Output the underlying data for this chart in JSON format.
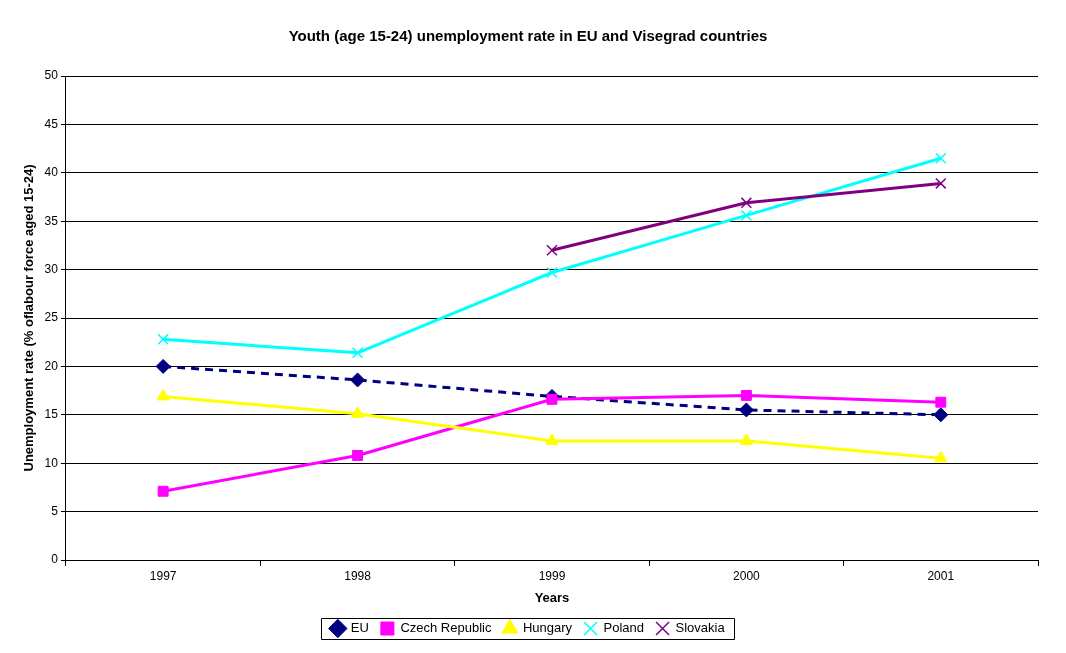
{
  "chart_data": {
    "type": "line",
    "title": "Youth (age 15-24) unemployment rate in EU and Visegrad countries",
    "xlabel": "Years",
    "ylabel": "Unemployment rate (% oflabour force aged 15-24)",
    "categories": [
      "1997",
      "1998",
      "1999",
      "2000",
      "2001"
    ],
    "series": [
      {
        "name": "EU",
        "color": "#000080",
        "marker": "diamond",
        "line_style": "dashed",
        "values": [
          20.0,
          18.6,
          16.9,
          15.5,
          15.0
        ]
      },
      {
        "name": "Czech Republic",
        "color": "#ff00ff",
        "marker": "square",
        "line_style": "solid",
        "values": [
          7.1,
          10.8,
          16.6,
          17.0,
          16.3
        ]
      },
      {
        "name": "Hungary",
        "color": "#ffff00",
        "marker": "triangle",
        "line_style": "solid",
        "values": [
          16.9,
          15.1,
          12.3,
          12.3,
          10.5
        ]
      },
      {
        "name": "Poland",
        "color": "#00ffff",
        "marker": "cross",
        "line_style": "solid",
        "values": [
          22.8,
          21.4,
          29.7,
          35.6,
          41.5
        ]
      },
      {
        "name": "Slovakia",
        "color": "#800080",
        "marker": "cross",
        "line_style": "solid",
        "values": [
          null,
          null,
          32.0,
          36.9,
          38.9
        ]
      }
    ],
    "ylim": [
      0,
      50
    ],
    "yticks": [
      0,
      5,
      10,
      15,
      20,
      25,
      30,
      35,
      40,
      45,
      50
    ],
    "grid": "y",
    "legend": "bottom"
  }
}
